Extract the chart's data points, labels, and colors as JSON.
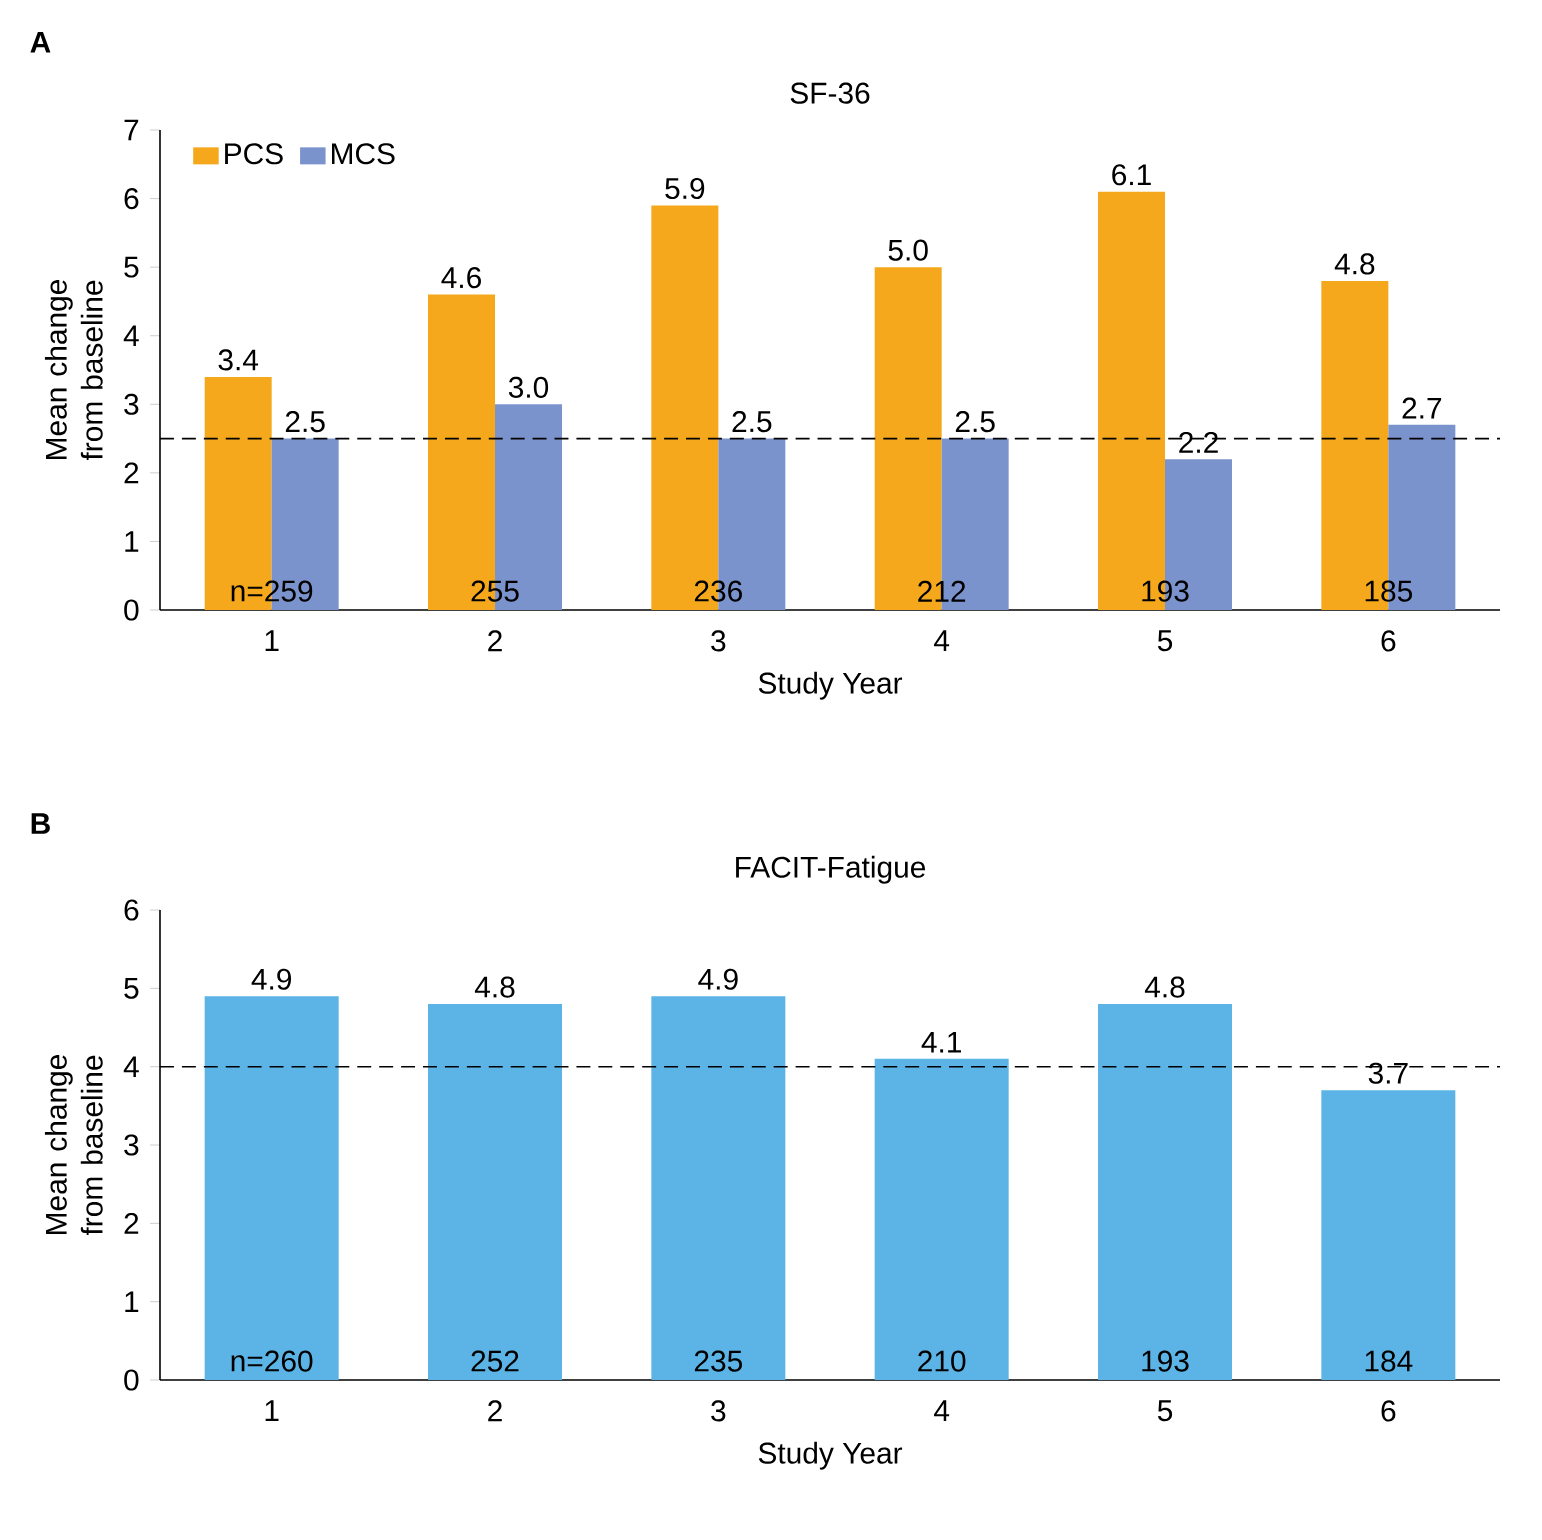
{
  "chart_data": [
    {
      "type": "bar",
      "title": "SF-36",
      "xlabel": "Study Year",
      "ylabel": "Mean change from baseline",
      "categories": [
        "1",
        "2",
        "3",
        "4",
        "5",
        "6"
      ],
      "series": [
        {
          "name": "PCS",
          "color": "#f5a81c",
          "values": [
            3.4,
            4.6,
            5.9,
            5.0,
            6.1,
            4.8
          ],
          "value_labels": [
            "3.4",
            "4.6",
            "5.9",
            "5.0",
            "6.1",
            "4.8"
          ]
        },
        {
          "name": "MCS",
          "color": "#7b93cd",
          "values": [
            2.5,
            3.0,
            2.5,
            2.5,
            2.2,
            2.7
          ],
          "value_labels": [
            "2.5",
            "3.0",
            "2.5",
            "2.5",
            "2.2",
            "2.7"
          ]
        }
      ],
      "ylim": [
        0,
        7
      ],
      "yticks": [
        0,
        1,
        2,
        3,
        4,
        5,
        6,
        7
      ],
      "legend": "top left",
      "ref_lines": [
        {
          "axis": "y",
          "value": 2.5,
          "color": "#000000",
          "line_style": "dashed"
        }
      ],
      "annotations": [
        "A",
        {
          "text": "n=259",
          "x": "1",
          "y": 0
        },
        {
          "text": "255",
          "x": "2",
          "y": 0
        },
        {
          "text": "236",
          "x": "3",
          "y": 0
        },
        {
          "text": "212",
          "x": "4",
          "y": 0
        },
        {
          "text": "193",
          "x": "5",
          "y": 0
        },
        {
          "text": "185",
          "x": "6",
          "y": 0
        }
      ]
    },
    {
      "type": "bar",
      "title": "FACIT-Fatigue",
      "xlabel": "Study Year",
      "ylabel": "Mean change from baseline",
      "categories": [
        "1",
        "2",
        "3",
        "4",
        "5",
        "6"
      ],
      "series": [
        {
          "color": "#5bb4e5",
          "values": [
            4.9,
            4.8,
            4.9,
            4.1,
            4.8,
            3.7
          ]
        }
      ],
      "ylim": [
        0,
        6
      ],
      "yticks": [
        0,
        1,
        2,
        3,
        4,
        5,
        6
      ],
      "data_labels": true,
      "ref_lines": [
        {
          "axis": "y",
          "value": 4,
          "color": "#000000",
          "line_style": "dashed"
        }
      ],
      "annotations": [
        "B",
        {
          "text": "n=260",
          "x": "1",
          "y": 0
        },
        {
          "text": "252",
          "x": "2",
          "y": 0
        },
        {
          "text": "235",
          "x": "3",
          "y": 0
        },
        {
          "text": "210",
          "x": "4",
          "y": 0
        },
        {
          "text": "193",
          "x": "5",
          "y": 0
        },
        {
          "text": "184",
          "x": "6",
          "y": 0
        }
      ]
    }
  ]
}
